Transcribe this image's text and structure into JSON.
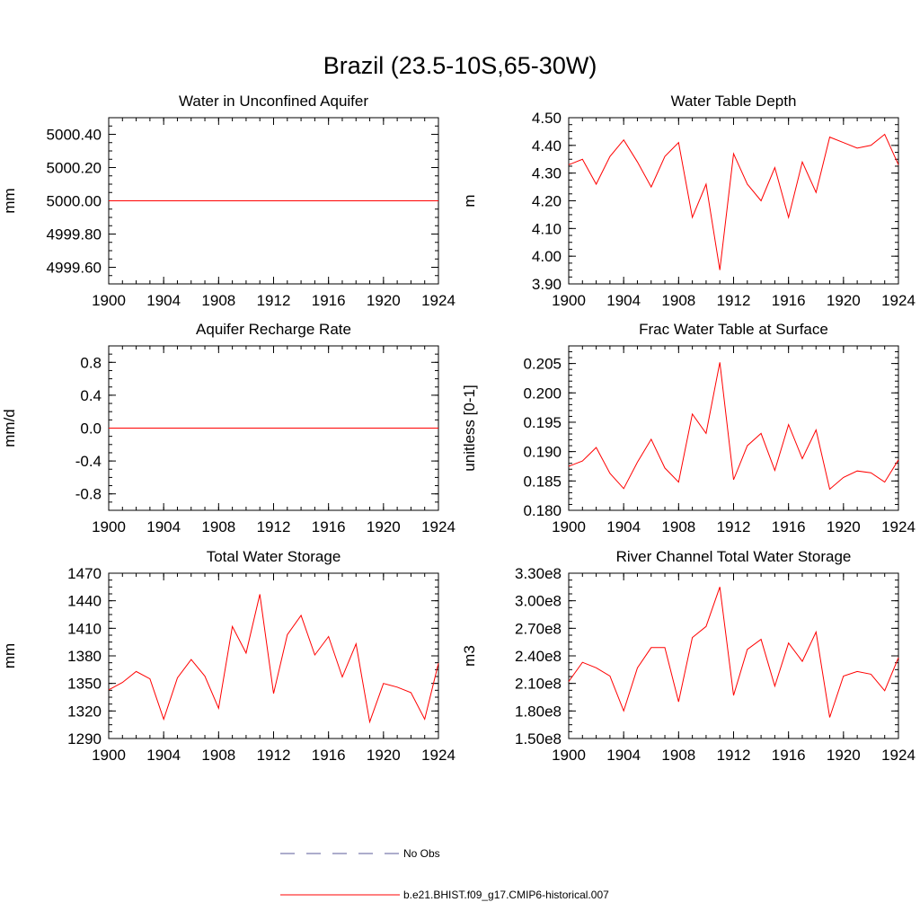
{
  "title": "Brazil (23.5-10S,65-30W)",
  "colors": {
    "model": "#ff0000",
    "obs": "#5b5b9a",
    "axis": "#000000"
  },
  "legend": {
    "obs_label": "No Obs",
    "model_label": "b.e21.BHIST.f09_g17.CMIP6-historical.007"
  },
  "chart_data": [
    {
      "type": "line",
      "title": "Water in Unconfined Aquifer",
      "ylabel": "mm",
      "xlim": [
        1900,
        1924
      ],
      "ylim": [
        4999.5,
        5000.5
      ],
      "xticks": [
        1900,
        1904,
        1908,
        1912,
        1916,
        1920,
        1924
      ],
      "yticks": [
        4999.6,
        4999.8,
        5000.0,
        5000.2,
        5000.4
      ],
      "ytick_labels": [
        "4999.60",
        "4999.80",
        "5000.00",
        "5000.20",
        "5000.40"
      ],
      "yminor": 0.05,
      "x": [
        1900,
        1901,
        1902,
        1903,
        1904,
        1905,
        1906,
        1907,
        1908,
        1909,
        1910,
        1911,
        1912,
        1913,
        1914,
        1915,
        1916,
        1917,
        1918,
        1919,
        1920,
        1921,
        1922,
        1923,
        1924
      ],
      "series": [
        {
          "name": "b.e21.BHIST.f09_g17.CMIP6-historical.007",
          "values": [
            5000,
            5000,
            5000,
            5000,
            5000,
            5000,
            5000,
            5000,
            5000,
            5000,
            5000,
            5000,
            5000,
            5000,
            5000,
            5000,
            5000,
            5000,
            5000,
            5000,
            5000,
            5000,
            5000,
            5000,
            5000
          ]
        }
      ]
    },
    {
      "type": "line",
      "title": "Water Table Depth",
      "ylabel": "m",
      "xlim": [
        1900,
        1924
      ],
      "ylim": [
        3.9,
        4.5
      ],
      "xticks": [
        1900,
        1904,
        1908,
        1912,
        1916,
        1920,
        1924
      ],
      "yticks": [
        3.9,
        4.0,
        4.1,
        4.2,
        4.3,
        4.4,
        4.5
      ],
      "ytick_labels": [
        "3.90",
        "4.00",
        "4.10",
        "4.20",
        "4.30",
        "4.40",
        "4.50"
      ],
      "yminor": 0.025,
      "x": [
        1900,
        1901,
        1902,
        1903,
        1904,
        1905,
        1906,
        1907,
        1908,
        1909,
        1910,
        1911,
        1912,
        1913,
        1914,
        1915,
        1916,
        1917,
        1918,
        1919,
        1920,
        1921,
        1922,
        1923,
        1924
      ],
      "series": [
        {
          "name": "b.e21.BHIST.f09_g17.CMIP6-historical.007",
          "values": [
            4.33,
            4.35,
            4.26,
            4.36,
            4.42,
            4.34,
            4.25,
            4.36,
            4.41,
            4.14,
            4.26,
            3.95,
            4.37,
            4.26,
            4.2,
            4.32,
            4.14,
            4.34,
            4.23,
            4.43,
            4.41,
            4.39,
            4.4,
            4.44,
            4.33
          ]
        }
      ]
    },
    {
      "type": "line",
      "title": "Aquifer Recharge Rate",
      "ylabel": "mm/d",
      "xlim": [
        1900,
        1924
      ],
      "ylim": [
        -1.0,
        1.0
      ],
      "xticks": [
        1900,
        1904,
        1908,
        1912,
        1916,
        1920,
        1924
      ],
      "yticks": [
        -0.8,
        -0.4,
        0.0,
        0.4,
        0.8
      ],
      "ytick_labels": [
        "-0.8",
        "-0.4",
        "0.0",
        "0.4",
        "0.8"
      ],
      "yminor": 0.1,
      "x": [
        1900,
        1901,
        1902,
        1903,
        1904,
        1905,
        1906,
        1907,
        1908,
        1909,
        1910,
        1911,
        1912,
        1913,
        1914,
        1915,
        1916,
        1917,
        1918,
        1919,
        1920,
        1921,
        1922,
        1923,
        1924
      ],
      "series": [
        {
          "name": "b.e21.BHIST.f09_g17.CMIP6-historical.007",
          "values": [
            0,
            0,
            0,
            0,
            0,
            0,
            0,
            0,
            0,
            0,
            0,
            0,
            0,
            0,
            0,
            0,
            0,
            0,
            0,
            0,
            0,
            0,
            0,
            0,
            0
          ]
        }
      ]
    },
    {
      "type": "line",
      "title": "Frac Water Table at Surface",
      "ylabel": "unitless [0-1]",
      "xlim": [
        1900,
        1924
      ],
      "ylim": [
        0.18,
        0.208
      ],
      "xticks": [
        1900,
        1904,
        1908,
        1912,
        1916,
        1920,
        1924
      ],
      "yticks": [
        0.18,
        0.185,
        0.19,
        0.195,
        0.2,
        0.205
      ],
      "ytick_labels": [
        "0.180",
        "0.185",
        "0.190",
        "0.195",
        "0.200",
        "0.205"
      ],
      "yminor": 0.001,
      "x": [
        1900,
        1901,
        1902,
        1903,
        1904,
        1905,
        1906,
        1907,
        1908,
        1909,
        1910,
        1911,
        1912,
        1913,
        1914,
        1915,
        1916,
        1917,
        1918,
        1919,
        1920,
        1921,
        1922,
        1923,
        1924
      ],
      "series": [
        {
          "name": "b.e21.BHIST.f09_g17.CMIP6-historical.007",
          "values": [
            0.1875,
            0.1884,
            0.1907,
            0.1863,
            0.1837,
            0.1882,
            0.1921,
            0.1872,
            0.1848,
            0.1964,
            0.1931,
            0.2052,
            0.1852,
            0.191,
            0.1931,
            0.1868,
            0.1946,
            0.1888,
            0.1937,
            0.1836,
            0.1856,
            0.1867,
            0.1864,
            0.1848,
            0.1886
          ]
        }
      ]
    },
    {
      "type": "line",
      "title": "Total Water Storage",
      "ylabel": "mm",
      "xlim": [
        1900,
        1924
      ],
      "ylim": [
        1290,
        1470
      ],
      "xticks": [
        1900,
        1904,
        1908,
        1912,
        1916,
        1920,
        1924
      ],
      "yticks": [
        1290,
        1320,
        1350,
        1380,
        1410,
        1440,
        1470
      ],
      "ytick_labels": [
        "1290",
        "1320",
        "1350",
        "1380",
        "1410",
        "1440",
        "1470"
      ],
      "yminor": 7.5,
      "x": [
        1900,
        1901,
        1902,
        1903,
        1904,
        1905,
        1906,
        1907,
        1908,
        1909,
        1910,
        1911,
        1912,
        1913,
        1914,
        1915,
        1916,
        1917,
        1918,
        1919,
        1920,
        1921,
        1922,
        1923,
        1924
      ],
      "series": [
        {
          "name": "b.e21.BHIST.f09_g17.CMIP6-historical.007",
          "values": [
            1343,
            1351,
            1363,
            1355,
            1311,
            1356,
            1376,
            1358,
            1323,
            1412,
            1383,
            1447,
            1339,
            1403,
            1424,
            1381,
            1401,
            1357,
            1393,
            1308,
            1350,
            1346,
            1340,
            1311,
            1372
          ]
        }
      ]
    },
    {
      "type": "line",
      "title": "River Channel Total Water Storage",
      "ylabel": "m3",
      "xlim": [
        1900,
        1924
      ],
      "ylim": [
        150000000,
        330000000
      ],
      "xticks": [
        1900,
        1904,
        1908,
        1912,
        1916,
        1920,
        1924
      ],
      "yticks": [
        150000000,
        180000000,
        210000000,
        240000000,
        270000000,
        300000000,
        330000000
      ],
      "ytick_labels": [
        "1.50e8",
        "1.80e8",
        "2.10e8",
        "2.40e8",
        "2.70e8",
        "3.00e8",
        "3.30e8"
      ],
      "yminor": 7500000,
      "x": [
        1900,
        1901,
        1902,
        1903,
        1904,
        1905,
        1906,
        1907,
        1908,
        1909,
        1910,
        1911,
        1912,
        1913,
        1914,
        1915,
        1916,
        1917,
        1918,
        1919,
        1920,
        1921,
        1922,
        1923,
        1924
      ],
      "series": [
        {
          "name": "b.e21.BHIST.f09_g17.CMIP6-historical.007",
          "values": [
            212000000,
            233000000,
            227000000,
            218000000,
            180000000,
            227000000,
            249000000,
            249000000,
            190000000,
            260000000,
            272000000,
            315000000,
            197000000,
            247000000,
            258000000,
            207000000,
            254000000,
            234000000,
            266000000,
            173000000,
            218000000,
            223000000,
            220000000,
            202000000,
            238000000
          ]
        }
      ]
    }
  ]
}
